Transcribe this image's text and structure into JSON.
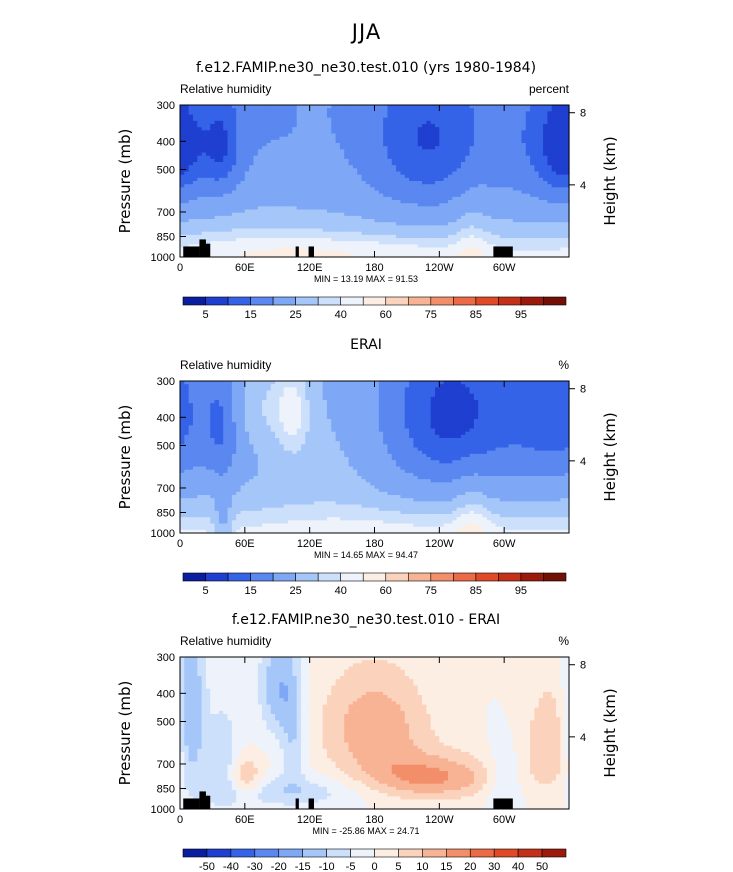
{
  "figure": {
    "suptitle": "JJA"
  },
  "chart_data": [
    {
      "type": "heatmap",
      "title": "f.e12.FAMIP.ne30_ne30.test.010 (yrs 1980-1984)",
      "left_label": "Relative humidity",
      "right_label": "percent",
      "ylabel": "Pressure (mb)",
      "ylabel_right": "Height (km)",
      "yticks": [
        300,
        400,
        500,
        700,
        850,
        1000
      ],
      "yticks_right": [
        8,
        4
      ],
      "xticks": [
        "0",
        "60E",
        "120E",
        "180",
        "120W",
        "60W"
      ],
      "stats": "MIN =  13.19   MAX =  91.53",
      "levels": [
        "5",
        "15",
        "25",
        "40",
        "60",
        "75",
        "85",
        "95"
      ],
      "colors": [
        "#0a1ea0",
        "#1f3fd0",
        "#3563e8",
        "#5a87f0",
        "#7ea8f6",
        "#a4c6f9",
        "#cde0fb",
        "#eef3fb",
        "#fdeee4",
        "#fbd2bb",
        "#f7b394",
        "#f28e69",
        "#ec6a45",
        "#e04a27",
        "#c43018",
        "#9c1a0c",
        "#721006"
      ],
      "terrain": true,
      "features": [
        {
          "lon": 40,
          "p": 430,
          "v": 22,
          "rx": 14,
          "rp": 150
        },
        {
          "lon": 0,
          "p": 430,
          "v": 28,
          "rx": 18,
          "rp": 160
        },
        {
          "lon": 85,
          "p": 380,
          "v": 40,
          "rx": 30,
          "rp": 150
        },
        {
          "lon": 145,
          "p": 450,
          "v": 48,
          "rx": 35,
          "rp": 250
        },
        {
          "lon": 230,
          "p": 430,
          "v": 15,
          "rx": 45,
          "rp": 230
        },
        {
          "lon": 345,
          "p": 430,
          "v": 25,
          "rx": 32,
          "rp": 200
        },
        {
          "lon": 60,
          "p": 900,
          "v": 84,
          "rx": 60,
          "rp": 120
        },
        {
          "lon": 180,
          "p": 900,
          "v": 82,
          "rx": 90,
          "rp": 100
        },
        {
          "lon": 270,
          "p": 850,
          "v": 85,
          "rx": 12,
          "rp": 200
        },
        {
          "lon": 160,
          "p": 950,
          "v": 88,
          "rx": 100,
          "rp": 70
        }
      ]
    },
    {
      "type": "heatmap",
      "title": "ERAI",
      "left_label": "Relative humidity",
      "right_label": "%",
      "ylabel": "Pressure (mb)",
      "ylabel_right": "Height (km)",
      "yticks": [
        300,
        400,
        500,
        700,
        850,
        1000
      ],
      "yticks_right": [
        8,
        4
      ],
      "xticks": [
        "0",
        "60E",
        "120E",
        "180",
        "120W",
        "60W"
      ],
      "stats": "MIN =  14.65   MAX =  94.47",
      "levels": [
        "5",
        "15",
        "25",
        "40",
        "60",
        "75",
        "85",
        "95"
      ],
      "colors": [
        "#0a1ea0",
        "#1f3fd0",
        "#3563e8",
        "#5a87f0",
        "#7ea8f6",
        "#a4c6f9",
        "#cde0fb",
        "#eef3fb",
        "#fdeee4",
        "#fbd2bb",
        "#f7b394",
        "#f28e69",
        "#ec6a45",
        "#e04a27",
        "#c43018",
        "#9c1a0c",
        "#721006"
      ],
      "terrain": false,
      "features": [
        {
          "lon": 40,
          "p": 430,
          "v": 22,
          "rx": 12,
          "rp": 150
        },
        {
          "lon": 0,
          "p": 420,
          "v": 45,
          "rx": 15,
          "rp": 150
        },
        {
          "lon": 75,
          "p": 360,
          "v": 70,
          "rx": 25,
          "rp": 110
        },
        {
          "lon": 105,
          "p": 380,
          "v": 70,
          "rx": 12,
          "rp": 120
        },
        {
          "lon": 140,
          "p": 420,
          "v": 62,
          "rx": 40,
          "rp": 250
        },
        {
          "lon": 250,
          "p": 430,
          "v": 12,
          "rx": 50,
          "rp": 230
        },
        {
          "lon": 350,
          "p": 430,
          "v": 25,
          "rx": 30,
          "rp": 200
        },
        {
          "lon": 180,
          "p": 920,
          "v": 86,
          "rx": 110,
          "rp": 110
        },
        {
          "lon": 40,
          "p": 920,
          "v": 55,
          "rx": 6,
          "rp": 150
        },
        {
          "lon": 270,
          "p": 880,
          "v": 90,
          "rx": 12,
          "rp": 180
        }
      ]
    },
    {
      "type": "heatmap",
      "title": "f.e12.FAMIP.ne30_ne30.test.010 - ERAI",
      "left_label": "Relative humidity",
      "right_label": "%",
      "ylabel": "Pressure (mb)",
      "ylabel_right": "Height (km)",
      "yticks": [
        300,
        400,
        500,
        700,
        850,
        1000
      ],
      "yticks_right": [
        8,
        4
      ],
      "xticks": [
        "0",
        "60E",
        "120E",
        "180",
        "120W",
        "60W"
      ],
      "stats": "MIN = -25.86   MAX =  24.71",
      "levels": [
        "-50",
        "-40",
        "-30",
        "-20",
        "-15",
        "-10",
        "-5",
        "0",
        "5",
        "10",
        "15",
        "20",
        "30",
        "40",
        "50"
      ],
      "colors": [
        "#0a1ea0",
        "#1f3fd0",
        "#3563e8",
        "#5a87f0",
        "#7ea8f6",
        "#a4c6f9",
        "#cde0fb",
        "#eef3fb",
        "#fdeee4",
        "#fbd2bb",
        "#f7b394",
        "#f28e69",
        "#ec6a45",
        "#e04a27",
        "#c43018",
        "#9c1a0c"
      ],
      "terrain": true,
      "features": [
        {
          "lon": 10,
          "p": 500,
          "v": -18,
          "rx": 10,
          "rp": 250
        },
        {
          "lon": 40,
          "p": 700,
          "v": -10,
          "rx": 10,
          "rp": 200
        },
        {
          "lon": 60,
          "p": 780,
          "v": 12,
          "rx": 12,
          "rp": 80
        },
        {
          "lon": 90,
          "p": 380,
          "v": -14,
          "rx": 12,
          "rp": 120
        },
        {
          "lon": 105,
          "p": 550,
          "v": -10,
          "rx": 8,
          "rp": 180
        },
        {
          "lon": 180,
          "p": 520,
          "v": 14,
          "rx": 35,
          "rp": 150
        },
        {
          "lon": 230,
          "p": 780,
          "v": 16,
          "rx": 45,
          "rp": 100
        },
        {
          "lon": 300,
          "p": 800,
          "v": -8,
          "rx": 12,
          "rp": 150
        },
        {
          "lon": 345,
          "p": 600,
          "v": 9,
          "rx": 20,
          "rp": 200
        },
        {
          "lon": 100,
          "p": 870,
          "v": -9,
          "rx": 50,
          "rp": 80
        }
      ]
    }
  ]
}
